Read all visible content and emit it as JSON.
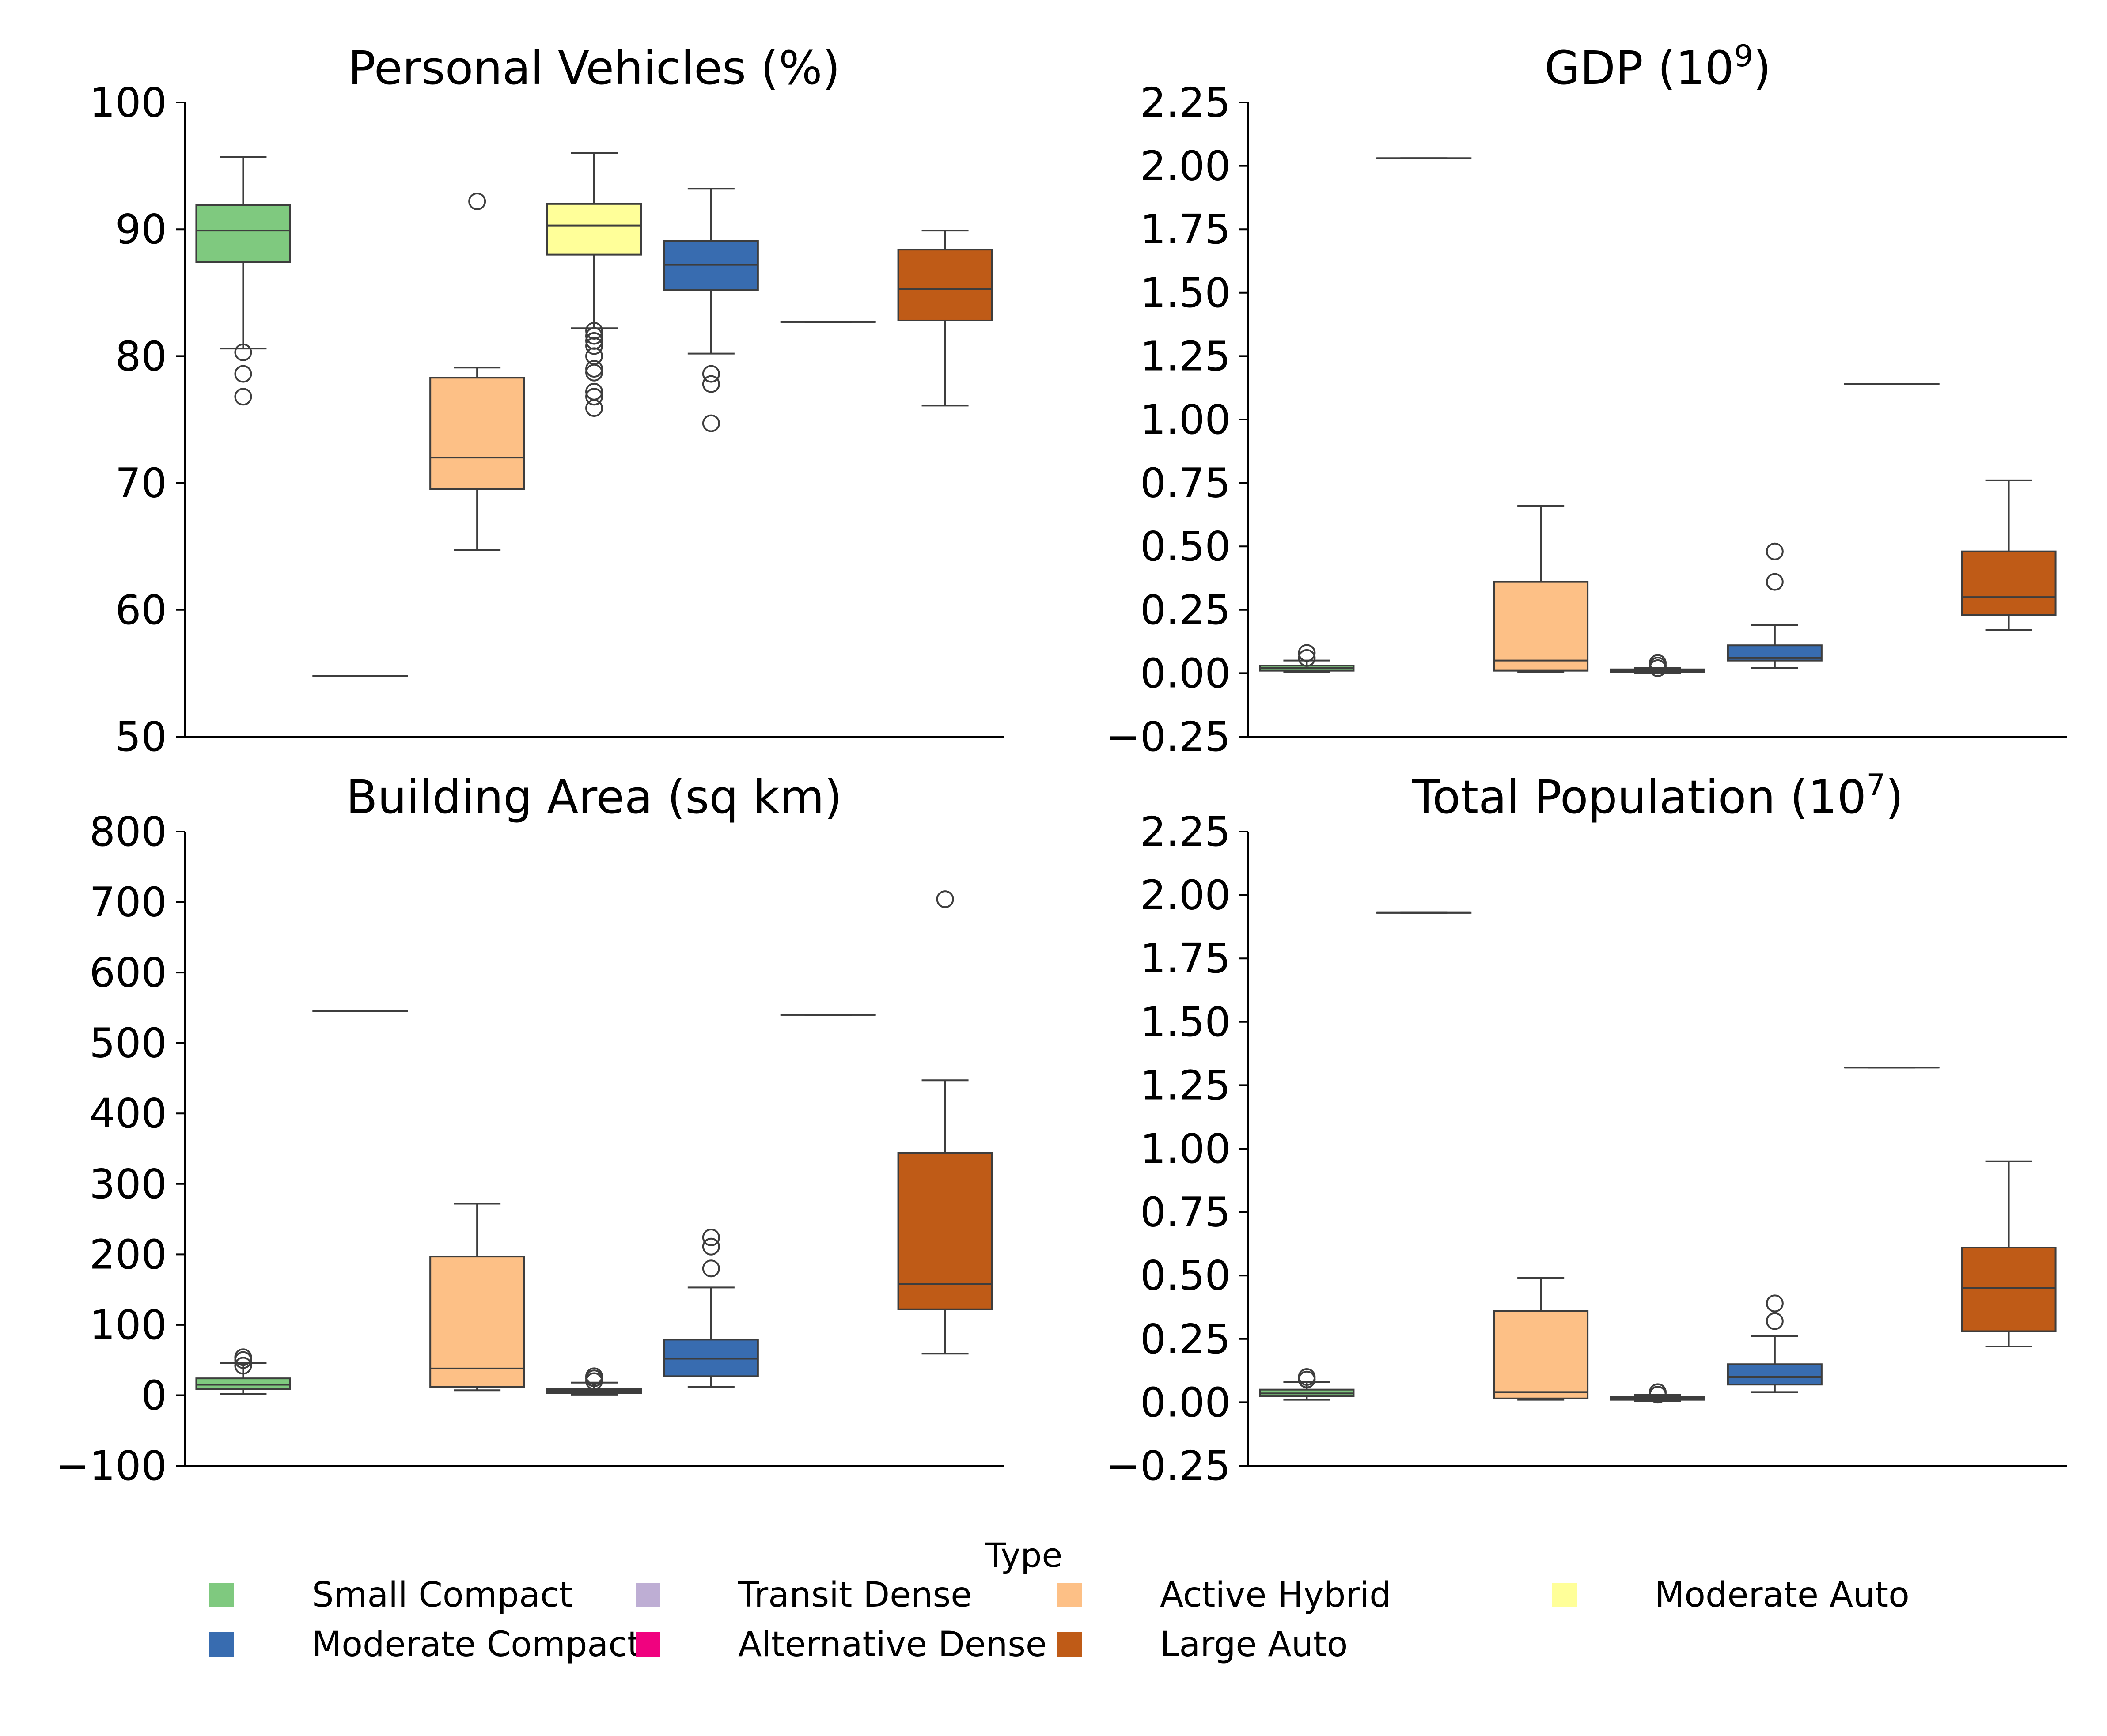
{
  "legend": {
    "title": "Type",
    "entries": [
      {
        "label": "Small Compact",
        "color": "#7fc97f"
      },
      {
        "label": "Transit Dense",
        "color": "#beaed4"
      },
      {
        "label": "Active Hybrid",
        "color": "#fdc086"
      },
      {
        "label": "Moderate Auto",
        "color": "#ffff99"
      },
      {
        "label": "Moderate Compact",
        "color": "#386cb0"
      },
      {
        "label": "Alternative Dense",
        "color": "#f0027f"
      },
      {
        "label": "Large Auto",
        "color": "#bf5b17"
      }
    ],
    "columns": 4,
    "placement": "bottom-center"
  },
  "chart_data": [
    {
      "type": "box",
      "title": "Personal Vehicles (%)",
      "xlabel": "",
      "ylabel": "",
      "ylim": [
        50,
        100
      ],
      "yticks": [
        50,
        60,
        70,
        80,
        90,
        100
      ],
      "ytick_labels": [
        "50",
        "60",
        "70",
        "80",
        "90",
        "100"
      ],
      "grid": false,
      "series": [
        {
          "name": "Small Compact",
          "q1": 87.4,
          "median": 89.9,
          "q3": 91.9,
          "whisker_low": 80.6,
          "whisker_high": 95.7,
          "outliers": [
            80.3,
            78.6,
            76.8
          ]
        },
        {
          "name": "Transit Dense",
          "q1": 54.8,
          "median": 54.8,
          "q3": 54.8,
          "whisker_low": 54.8,
          "whisker_high": 54.8,
          "outliers": []
        },
        {
          "name": "Active Hybrid",
          "q1": 69.5,
          "median": 72.0,
          "q3": 78.3,
          "whisker_low": 64.7,
          "whisker_high": 79.1,
          "outliers": [
            92.2
          ]
        },
        {
          "name": "Moderate Auto",
          "q1": 88.0,
          "median": 90.3,
          "q3": 92.0,
          "whisker_low": 82.2,
          "whisker_high": 96.0,
          "outliers": [
            82.0,
            81.6,
            81.2,
            80.8,
            80.0,
            79.0,
            78.7,
            77.2,
            76.8,
            75.9
          ]
        },
        {
          "name": "Moderate Compact",
          "q1": 85.2,
          "median": 87.2,
          "q3": 89.1,
          "whisker_low": 80.2,
          "whisker_high": 93.2,
          "outliers": [
            78.6,
            77.8,
            74.7
          ]
        },
        {
          "name": "Alternative Dense",
          "q1": 82.7,
          "median": 82.7,
          "q3": 82.7,
          "whisker_low": 82.7,
          "whisker_high": 82.7,
          "outliers": []
        },
        {
          "name": "Large Auto",
          "q1": 82.8,
          "median": 85.3,
          "q3": 88.4,
          "whisker_low": 76.1,
          "whisker_high": 89.9,
          "outliers": []
        }
      ]
    },
    {
      "type": "box",
      "title": "GDP (10",
      "title_superscript": "9",
      "title_suffix": ")",
      "xlabel": "",
      "ylabel": "",
      "ylim": [
        -0.25,
        2.25
      ],
      "yticks": [
        -0.25,
        0,
        0.25,
        0.5,
        0.75,
        1.0,
        1.25,
        1.5,
        1.75,
        2.0,
        2.25
      ],
      "ytick_labels": [
        "−0.25",
        "0.00",
        "0.25",
        "0.50",
        "0.75",
        "1.00",
        "1.25",
        "1.50",
        "1.75",
        "2.00",
        "2.25"
      ],
      "grid": false,
      "series": [
        {
          "name": "Small Compact",
          "q1": 0.01,
          "median": 0.02,
          "q3": 0.03,
          "whisker_low": 0.005,
          "whisker_high": 0.05,
          "outliers": [
            0.06,
            0.08
          ]
        },
        {
          "name": "Transit Dense",
          "q1": 2.03,
          "median": 2.03,
          "q3": 2.03,
          "whisker_low": 2.03,
          "whisker_high": 2.03,
          "outliers": []
        },
        {
          "name": "Active Hybrid",
          "q1": 0.01,
          "median": 0.05,
          "q3": 0.36,
          "whisker_low": 0.005,
          "whisker_high": 0.66,
          "outliers": []
        },
        {
          "name": "Moderate Auto",
          "q1": 0.005,
          "median": 0.01,
          "q3": 0.015,
          "whisker_low": 0.0,
          "whisker_high": 0.02,
          "outliers": [
            0.02,
            0.03,
            0.04
          ]
        },
        {
          "name": "Moderate Compact",
          "q1": 0.05,
          "median": 0.06,
          "q3": 0.11,
          "whisker_low": 0.02,
          "whisker_high": 0.19,
          "outliers": [
            0.36,
            0.48
          ]
        },
        {
          "name": "Alternative Dense",
          "q1": 1.14,
          "median": 1.14,
          "q3": 1.14,
          "whisker_low": 1.14,
          "whisker_high": 1.14,
          "outliers": []
        },
        {
          "name": "Large Auto",
          "q1": 0.23,
          "median": 0.3,
          "q3": 0.48,
          "whisker_low": 0.17,
          "whisker_high": 0.76,
          "outliers": []
        }
      ]
    },
    {
      "type": "box",
      "title": "Building Area (sq km)",
      "xlabel": "",
      "ylabel": "",
      "ylim": [
        -100,
        800
      ],
      "yticks": [
        -100,
        0,
        100,
        200,
        300,
        400,
        500,
        600,
        700,
        800
      ],
      "ytick_labels": [
        "−100",
        "0",
        "100",
        "200",
        "300",
        "400",
        "500",
        "600",
        "700",
        "800"
      ],
      "grid": false,
      "series": [
        {
          "name": "Small Compact",
          "q1": 9,
          "median": 15,
          "q3": 24,
          "whisker_low": 2,
          "whisker_high": 46,
          "outliers": [
            42,
            50,
            54
          ]
        },
        {
          "name": "Transit Dense",
          "q1": 545,
          "median": 545,
          "q3": 545,
          "whisker_low": 545,
          "whisker_high": 545,
          "outliers": []
        },
        {
          "name": "Active Hybrid",
          "q1": 12,
          "median": 38,
          "q3": 197,
          "whisker_low": 7,
          "whisker_high": 272,
          "outliers": []
        },
        {
          "name": "Moderate Auto",
          "q1": 3,
          "median": 6,
          "q3": 9,
          "whisker_low": 1,
          "whisker_high": 18,
          "outliers": [
            20,
            24,
            27
          ]
        },
        {
          "name": "Moderate Compact",
          "q1": 27,
          "median": 52,
          "q3": 79,
          "whisker_low": 12,
          "whisker_high": 153,
          "outliers": [
            180,
            211,
            224
          ]
        },
        {
          "name": "Alternative Dense",
          "q1": 540,
          "median": 540,
          "q3": 540,
          "whisker_low": 540,
          "whisker_high": 540,
          "outliers": []
        },
        {
          "name": "Large Auto",
          "q1": 122,
          "median": 158,
          "q3": 344,
          "whisker_low": 59,
          "whisker_high": 447,
          "outliers": [
            704
          ]
        }
      ]
    },
    {
      "type": "box",
      "title": "Total Population (10",
      "title_superscript": "7",
      "title_suffix": ")",
      "xlabel": "",
      "ylabel": "",
      "ylim": [
        -0.25,
        2.25
      ],
      "yticks": [
        -0.25,
        0,
        0.25,
        0.5,
        0.75,
        1.0,
        1.25,
        1.5,
        1.75,
        2.0,
        2.25
      ],
      "ytick_labels": [
        "−0.25",
        "0.00",
        "0.25",
        "0.50",
        "0.75",
        "1.00",
        "1.25",
        "1.50",
        "1.75",
        "2.00",
        "2.25"
      ],
      "grid": false,
      "series": [
        {
          "name": "Small Compact",
          "q1": 0.025,
          "median": 0.035,
          "q3": 0.05,
          "whisker_low": 0.01,
          "whisker_high": 0.08,
          "outliers": [
            0.09,
            0.1
          ]
        },
        {
          "name": "Transit Dense",
          "q1": 1.93,
          "median": 1.93,
          "q3": 1.93,
          "whisker_low": 1.93,
          "whisker_high": 1.93,
          "outliers": []
        },
        {
          "name": "Active Hybrid",
          "q1": 0.015,
          "median": 0.04,
          "q3": 0.36,
          "whisker_low": 0.01,
          "whisker_high": 0.49,
          "outliers": []
        },
        {
          "name": "Moderate Auto",
          "q1": 0.01,
          "median": 0.015,
          "q3": 0.02,
          "whisker_low": 0.005,
          "whisker_high": 0.03,
          "outliers": [
            0.03,
            0.04
          ]
        },
        {
          "name": "Moderate Compact",
          "q1": 0.07,
          "median": 0.1,
          "q3": 0.15,
          "whisker_low": 0.04,
          "whisker_high": 0.26,
          "outliers": [
            0.32,
            0.39
          ]
        },
        {
          "name": "Alternative Dense",
          "q1": 1.32,
          "median": 1.32,
          "q3": 1.32,
          "whisker_low": 1.32,
          "whisker_high": 1.32,
          "outliers": []
        },
        {
          "name": "Large Auto",
          "q1": 0.28,
          "median": 0.45,
          "q3": 0.61,
          "whisker_low": 0.22,
          "whisker_high": 0.95,
          "outliers": []
        }
      ]
    }
  ]
}
